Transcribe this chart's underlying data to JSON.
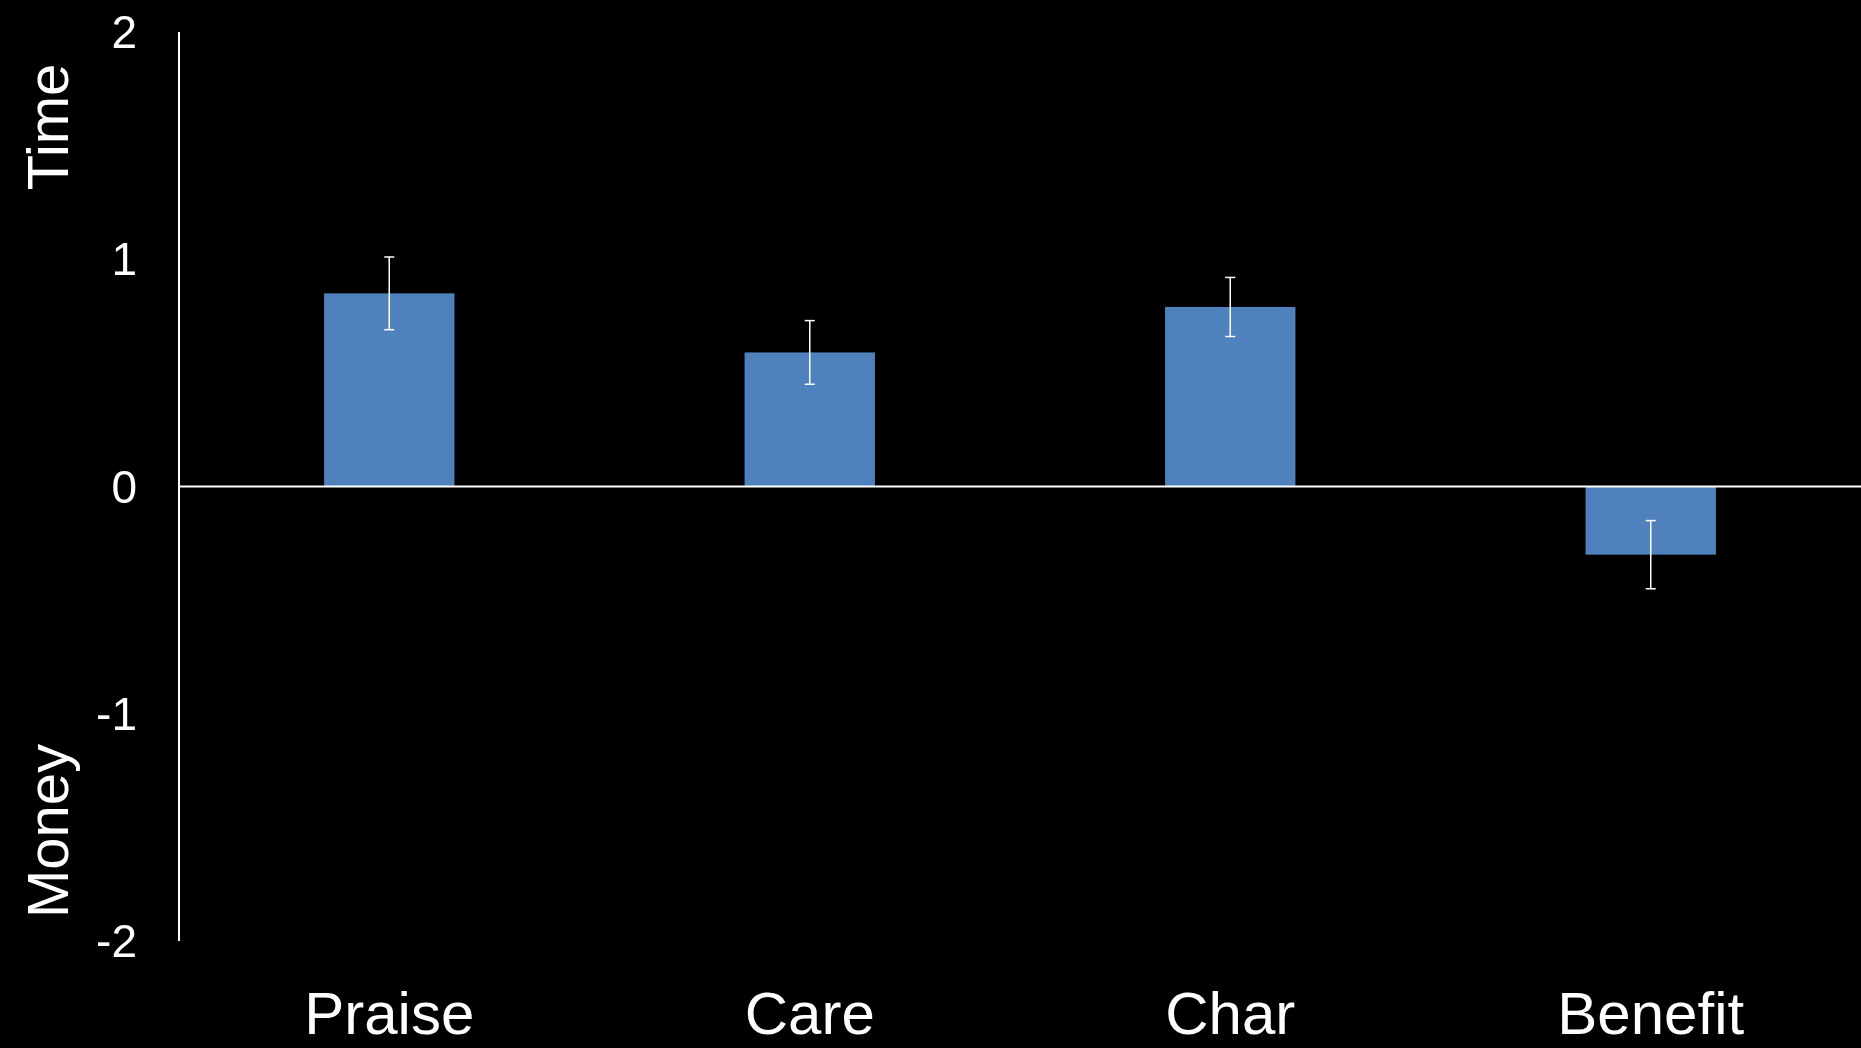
{
  "chart_data": {
    "type": "bar",
    "categories": [
      "Praise",
      "Care",
      "Char",
      "Benefit"
    ],
    "values": [
      0.85,
      0.59,
      0.79,
      -0.3
    ],
    "errors": [
      0.16,
      0.14,
      0.13,
      0.15
    ],
    "color": "#4f81bd",
    "ylim": [
      -2,
      2
    ],
    "yticks": [
      -2,
      -1,
      0,
      1,
      2
    ],
    "annotations": [
      "Time",
      "Money"
    ]
  }
}
